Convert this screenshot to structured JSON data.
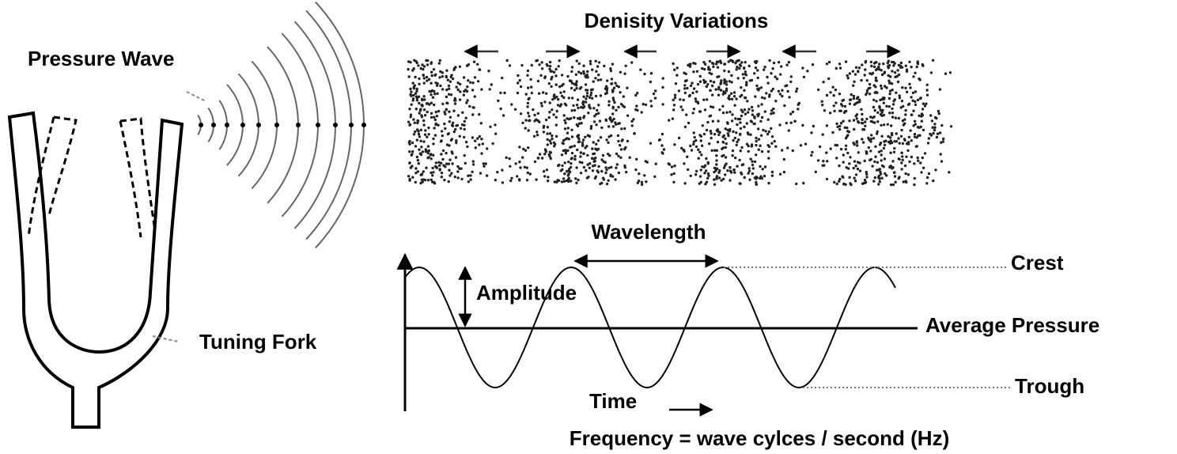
{
  "labels": {
    "pressure_wave": "Pressure Wave",
    "density_variations": "Denisity Variations",
    "wavelength": "Wavelength",
    "crest": "Crest",
    "amplitude": "Amplitude",
    "average_pressure": "Average Pressure",
    "tuning_fork": "Tuning Fork",
    "trough": "Trough",
    "time": "Time",
    "frequency": "Frequency = wave cylces / second (Hz)"
  }
}
